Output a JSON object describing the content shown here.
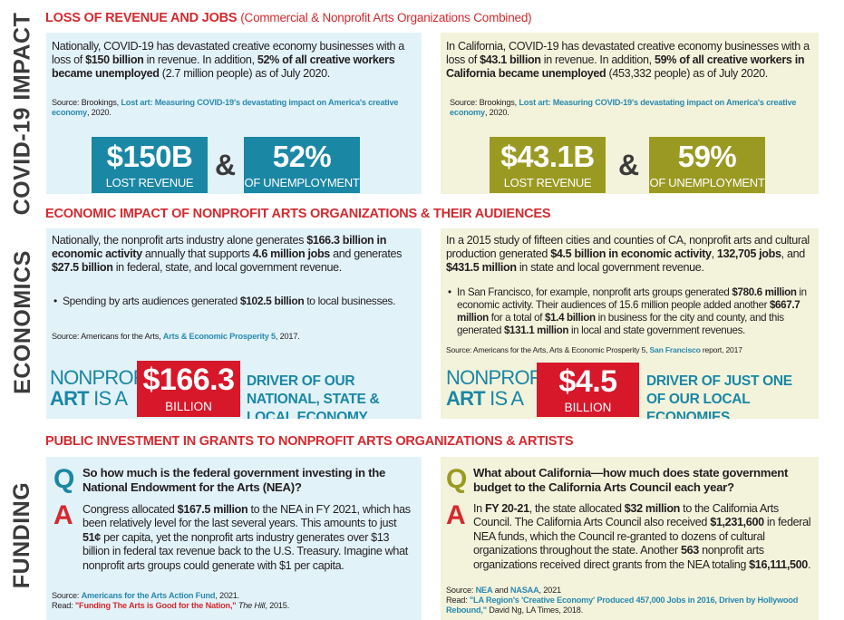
{
  "sidebar": {
    "covid": "COVID-19 IMPACT",
    "economics": "ECONOMICS",
    "funding": "FUNDING"
  },
  "section1": {
    "title": "LOSS OF REVENUE AND JOBS",
    "subtitle": "(Commercial & Nonprofit Arts Organizations Combined)",
    "left": {
      "t1": "Nationally, COVID-19 has devastated creative economy businesses with a loss of ",
      "b1": "$150 billion",
      "t2": " in revenue. In addition, ",
      "b2": "52% of all creative workers became unemployed",
      "t3": " (2.7 million people) as of July 2020.",
      "src_pre": "Source:  Brookings, ",
      "src_link": "Lost art: Measuring COVID-19's devastating impact on America's creative economy",
      "src_post": ", 2020.",
      "stat1_big": "$150B",
      "stat1_label": "LOST REVENUE",
      "amp": "&",
      "stat2_big": "52%",
      "stat2_label": "OF UNEMPLOYMENT"
    },
    "right": {
      "t1": "In California, COVID-19 has devastated creative economy businesses with a loss of ",
      "b1": "$43.1 billion",
      "t2": " in revenue. In addition, ",
      "b2": "59% of all creative workers in California became unemployed",
      "t3": " (453,332 people) as of July 2020.",
      "src_pre": "Source:  Brookings, ",
      "src_link": "Lost art: Measuring COVID-19's devastating impact on America's creative economy",
      "src_post": ", 2020.",
      "stat1_big": "$43.1B",
      "stat1_label": "LOST REVENUE",
      "amp": "&",
      "stat2_big": "59%",
      "stat2_label": "OF UNEMPLOYMENT"
    }
  },
  "section2": {
    "title": "ECONOMIC IMPACT OF NONPROFIT ARTS ORGANIZATIONS & THEIR AUDIENCES",
    "left": {
      "t1": "Nationally, the nonprofit arts industry alone generates ",
      "b1": "$166.3 billion in economic activity",
      "t2": " annually that supports ",
      "b2": "4.6 million jobs",
      "t3": " and generates ",
      "b3": "$27.5 billion",
      "t4": " in federal, state, and local government revenue.",
      "bullet_pre": "Spending by arts audiences generated ",
      "bullet_b": "$102.5 billion",
      "bullet_post": " to local businesses.",
      "src_pre": "Source: Americans for the Arts, ",
      "src_link": "Arts & Economic Prosperity 5",
      "src_post": ", 2017.",
      "np1": "NONPROFIT",
      "np2a": "ART",
      "np2b": " IS A",
      "red_big": "$166.3",
      "red_label": "BILLION",
      "driver": "DRIVER OF OUR NATIONAL, STATE & LOCAL ECONOMY."
    },
    "right": {
      "t1": "In a 2015 study of fifteen cities and counties of CA, nonprofit arts and cultural production generated ",
      "b1": "$4.5 billion in economic activity",
      "t2": ", ",
      "b2": "132,705 jobs",
      "t3": ", and ",
      "b3": "$431.5 million",
      "t4": " in state and local government revenue.",
      "bullet_t1": "In San Francisco, for example, nonprofit arts groups generated ",
      "bullet_b1": "$780.6 million",
      "bullet_t2": " in economic activity. Their audiences of 15.6 million people added another ",
      "bullet_b2": "$667.7 million",
      "bullet_t3": " for a total of ",
      "bullet_b3": "$1.4 billion",
      "bullet_t4": " in business for the city and county, and this generated ",
      "bullet_b4": "$131.1 million",
      "bullet_t5": " in local and state government revenues.",
      "src_pre": "Source: Americans for the Arts, Arts & Economic Prosperity 5, ",
      "src_link": "San Francisco",
      "src_post": " report, 2017",
      "np1": "NONPROFIT",
      "np2a": "ART",
      "np2b": " IS A",
      "red_big": "$4.5",
      "red_label": "BILLION",
      "driver": "DRIVER OF JUST ONE OF OUR LOCAL ECONOMIES."
    }
  },
  "section3": {
    "title": "PUBLIC INVESTMENT IN GRANTS TO NONPROFIT ARTS ORGANIZATIONS & ARTISTS",
    "q_letter": "Q",
    "a_letter": "A",
    "left": {
      "question": "So how much is the federal government investing in the National Endowment for the Arts (NEA)?",
      "a1": "Congress allocated ",
      "ab1": "$167.5 million",
      "a2": " to the NEA in FY 2021, which has been relatively level for the last several years. This amounts to just ",
      "ab2": "51¢",
      "a3": " per capita, yet the nonprofit arts industry generates over $13 billion in federal tax revenue back to the U.S. Treasury. Imagine what nonprofit arts groups could generate with $1 per capita.",
      "src1_pre": "Source: ",
      "src1_link": "Americans for the Arts Action Fund",
      "src1_post": ", 2021.",
      "src2_pre": "Read: ",
      "src2_link": "\"Funding The Arts is Good for the Nation,\"",
      "src2_ital": " The Hill",
      "src2_post": ", 2015."
    },
    "right": {
      "question": "What about California—how much does state government budget to the California Arts Council each year?",
      "a1": "In ",
      "ab1": "FY 20-21",
      "a2": ", the state allocated ",
      "ab2": "$32 million",
      "a3": " to the California Arts Council. The California Arts Council also received ",
      "ab3": "$1,231,600",
      "a4": " in federal NEA funds, which the Council re-granted to dozens of cultural organizations throughout the state. Another ",
      "ab4": "563",
      "a5": " nonprofit arts organizations received direct grants from the NEA totaling ",
      "ab5": "$16,111,500",
      "a6": ".",
      "src1_pre": "Source: ",
      "src1_link": "NEA",
      "src1_mid": " and ",
      "src1_link2": "NASAA",
      "src1_post": ", 2021",
      "src2_pre": "Read: ",
      "src2_link": "\"LA Region's 'Creative Economy' Produced 457,000 Jobs in 2016, Driven by Hollywood Rebound,\"",
      "src2_post": " David Ng, LA Times, 2018."
    }
  }
}
